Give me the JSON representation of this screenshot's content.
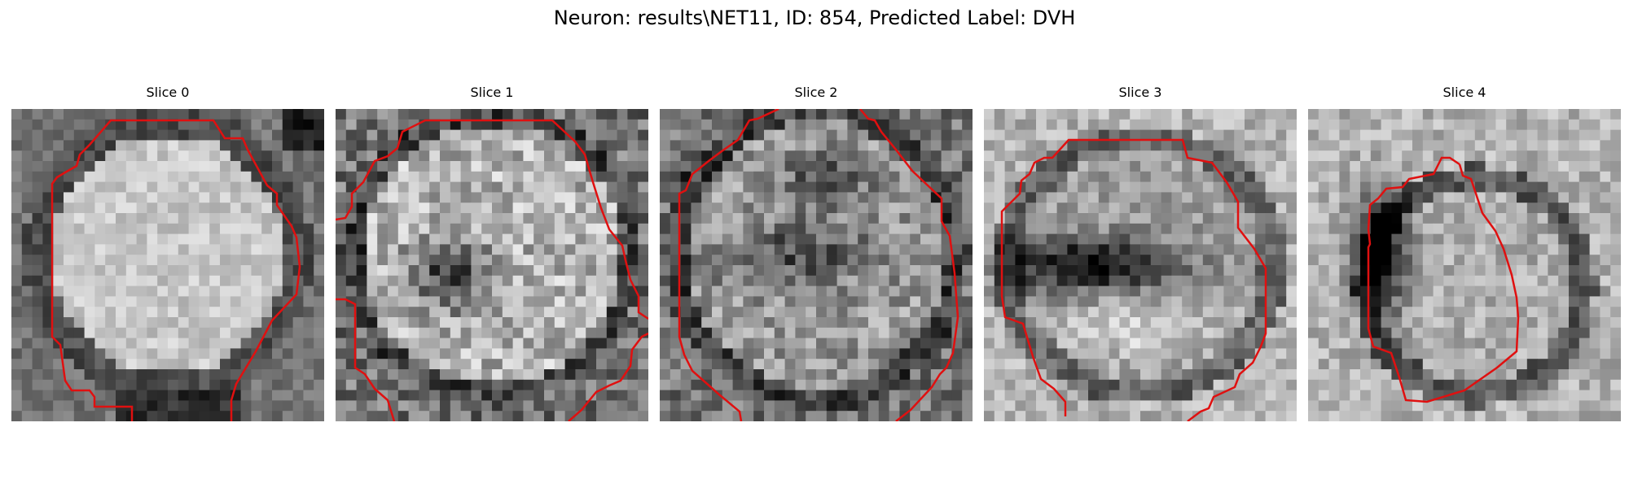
{
  "figure": {
    "title": "Neuron: results\\NET11, ID: 854, Predicted Label: DVH"
  },
  "panels": [
    {
      "title": "Slice 0",
      "pattern": "bright-disk"
    },
    {
      "title": "Slice 1",
      "pattern": "disk-with-dark-core"
    },
    {
      "title": "Slice 2",
      "pattern": "textured-disk"
    },
    {
      "title": "Slice 3",
      "pattern": "dark-horizontal-band"
    },
    {
      "title": "Slice 4",
      "pattern": "dark-left-crescent"
    }
  ],
  "colors": {
    "contour": "#e01010",
    "background": "#ffffff"
  }
}
